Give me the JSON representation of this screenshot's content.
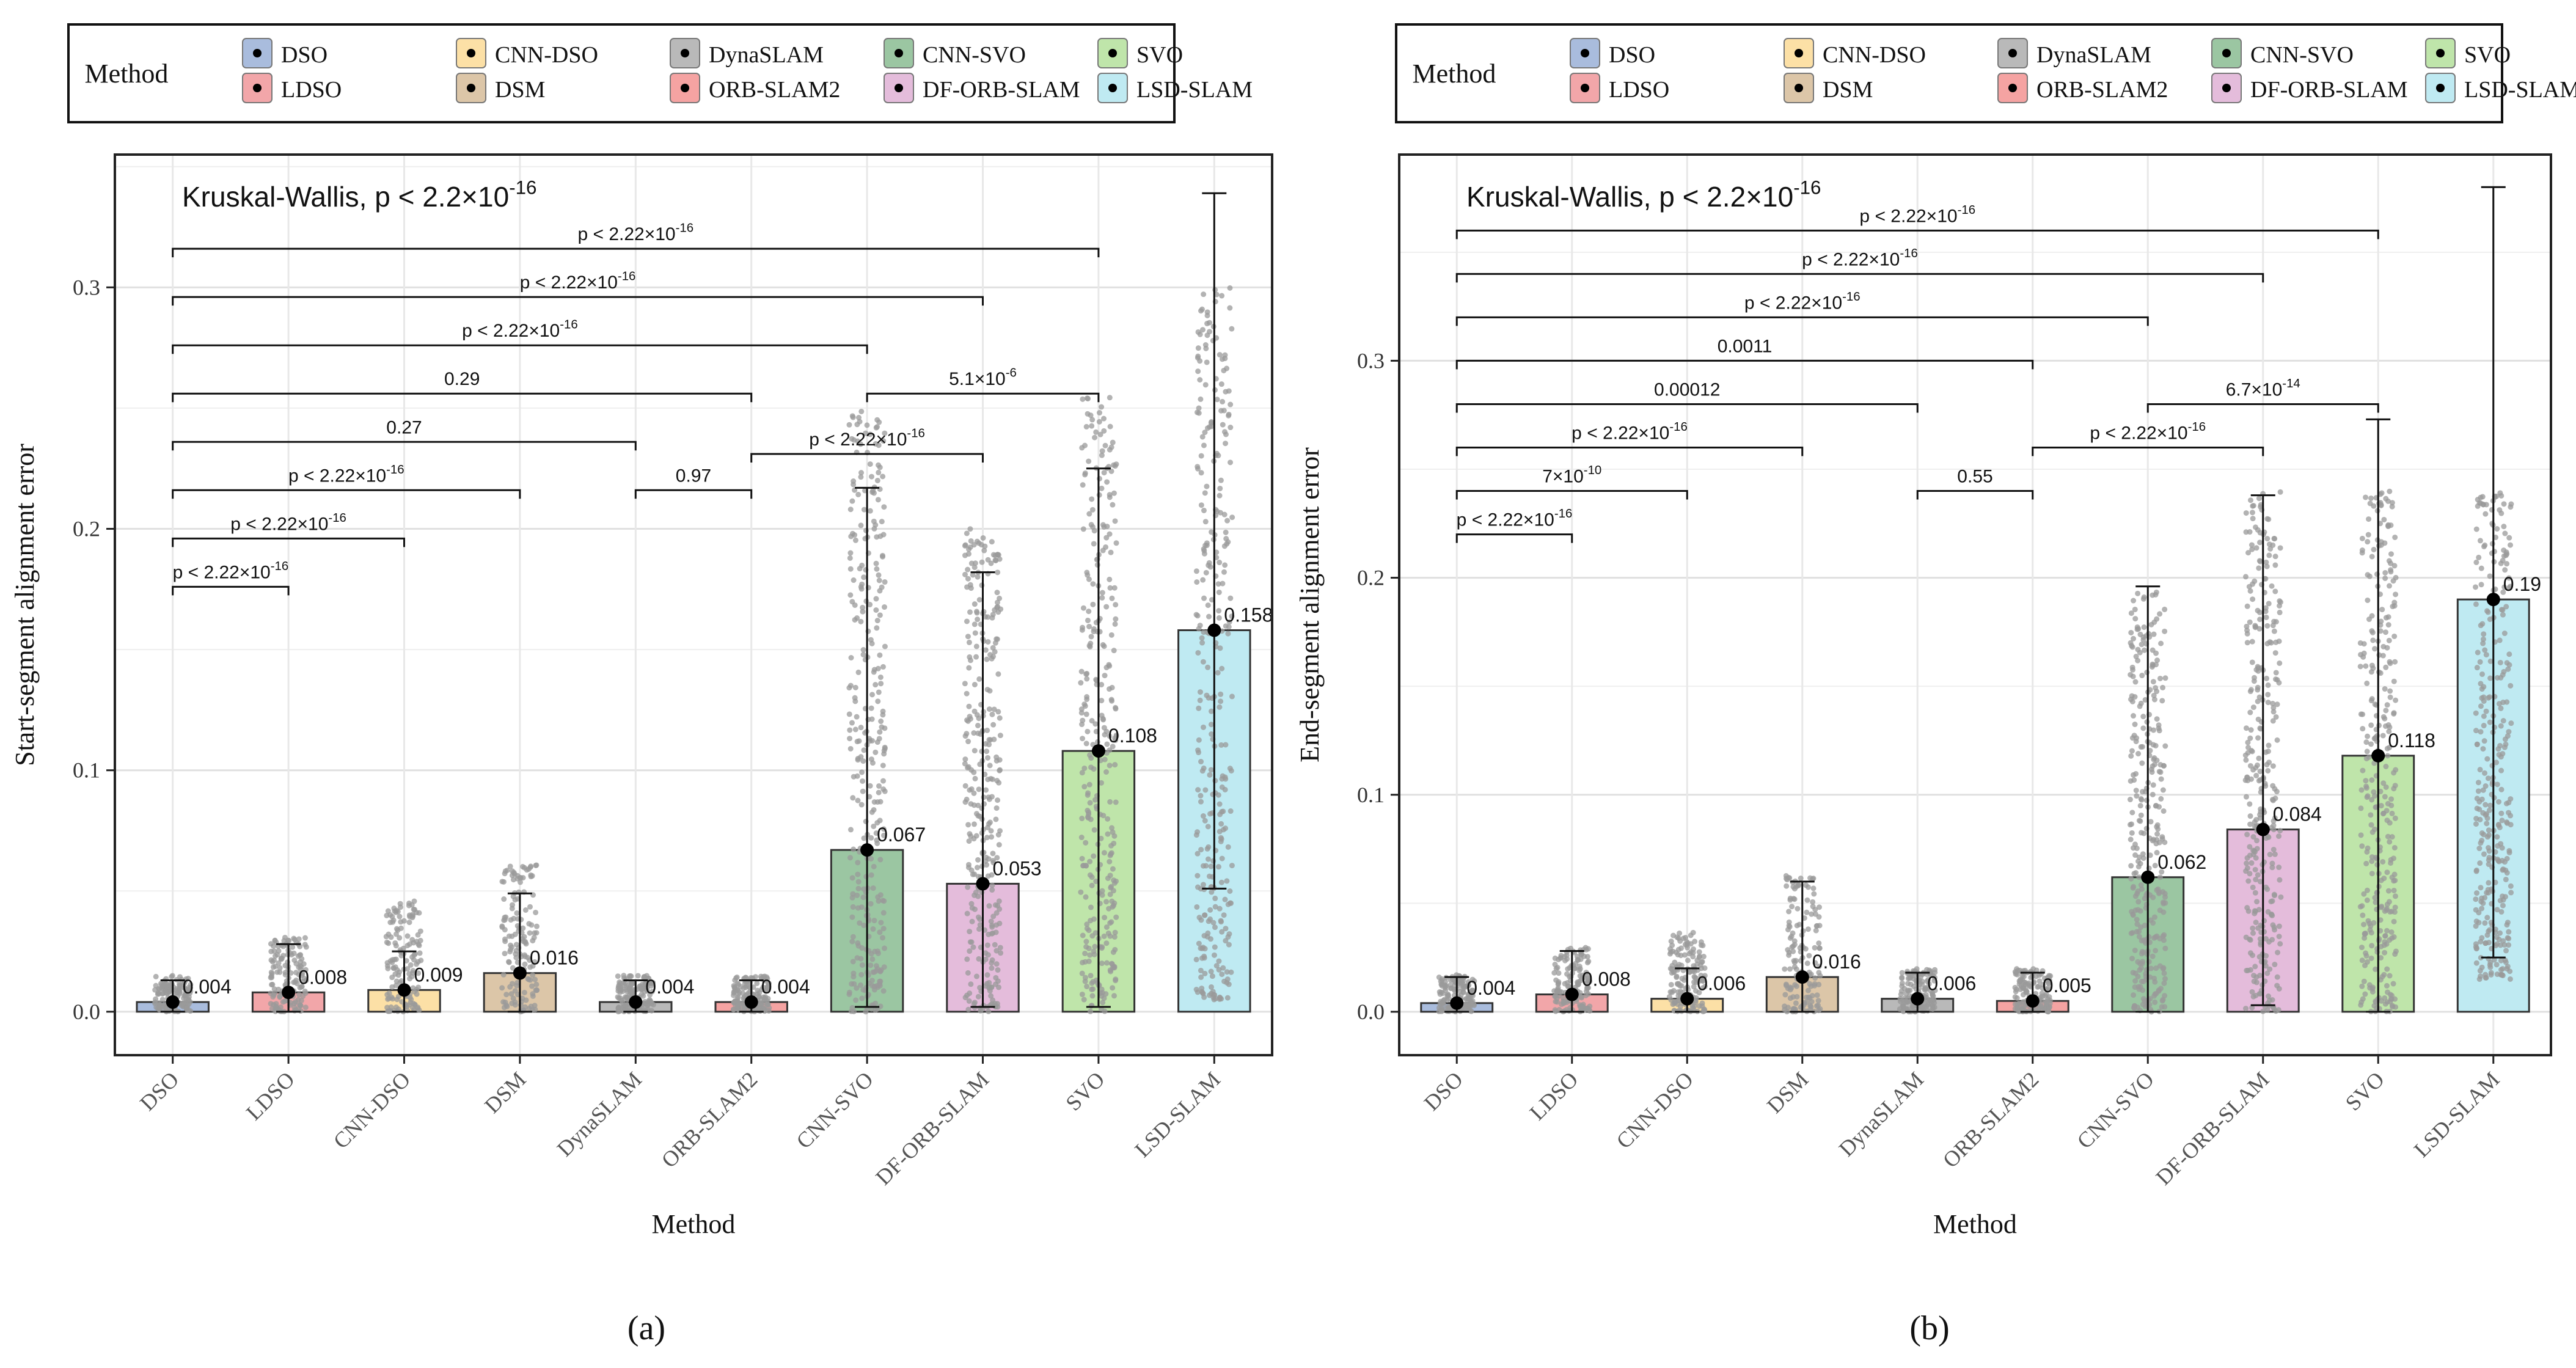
{
  "legend": {
    "title": "Method",
    "items": [
      {
        "label": "DSO",
        "color": "#A9BCDD"
      },
      {
        "label": "LDSO",
        "color": "#F2A6A9"
      },
      {
        "label": "CNN-DSO",
        "color": "#FCE0A6"
      },
      {
        "label": "DSM",
        "color": "#DCC6A8"
      },
      {
        "label": "DynaSLAM",
        "color": "#B9B9B9"
      },
      {
        "label": "ORB-SLAM2",
        "color": "#F5A3A2"
      },
      {
        "label": "CNN-SVO",
        "color": "#9BC6A2"
      },
      {
        "label": "DF-ORB-SLAM",
        "color": "#E4BCDB"
      },
      {
        "label": "SVO",
        "color": "#BFE5AA"
      },
      {
        "label": "LSD-SLAM",
        "color": "#BFEAF2"
      }
    ]
  },
  "chart_data": [
    {
      "type": "bar",
      "panel_label": "(a)",
      "categories": [
        "DSO",
        "LDSO",
        "CNN-DSO",
        "DSM",
        "DynaSLAM",
        "ORB-SLAM2",
        "CNN-SVO",
        "DF-ORB-SLAM",
        "SVO",
        "LSD-SLAM"
      ],
      "values": [
        0.004,
        0.008,
        0.009,
        0.016,
        0.004,
        0.004,
        0.067,
        0.053,
        0.108,
        0.158
      ],
      "value_labels": [
        "0.004",
        "0.008",
        "0.009",
        "0.016",
        "0.004",
        "0.004",
        "0.067",
        "0.053",
        "0.108",
        "0.158"
      ],
      "error_upper": [
        0.013,
        0.028,
        0.025,
        0.049,
        0.013,
        0.013,
        0.217,
        0.182,
        0.225,
        0.339
      ],
      "error_lower": [
        0.0,
        0.0,
        0.0,
        0.0,
        0.0,
        0.0,
        0.002,
        0.002,
        0.002,
        0.051
      ],
      "points_range": [
        [
          0.0,
          0.015
        ],
        [
          0.0,
          0.031
        ],
        [
          0.0,
          0.046
        ],
        [
          0.0,
          0.063
        ],
        [
          0.0,
          0.015
        ],
        [
          0.0,
          0.015
        ],
        [
          0.0,
          0.25
        ],
        [
          0.0,
          0.2
        ],
        [
          0.0,
          0.255
        ],
        [
          0.005,
          0.3
        ]
      ],
      "ylabel": "Start-segment alignment error",
      "xlabel": "Method",
      "ylim": [
        -0.018,
        0.355
      ],
      "yticks": [
        0.0,
        0.1,
        0.2,
        0.3
      ],
      "ytick_labels": [
        "0.0",
        "0.1",
        "0.2",
        "0.3"
      ],
      "test_label_main": "Kruskal-Wallis, p < 2.2×10",
      "test_label_exp": "-16",
      "comparisons": [
        {
          "from": 0,
          "to": 8,
          "y": 0.316,
          "text": "p < 2.22×10",
          "exp": "-16"
        },
        {
          "from": 0,
          "to": 7,
          "y": 0.296,
          "text": "p < 2.22×10",
          "exp": "-16"
        },
        {
          "from": 0,
          "to": 6,
          "y": 0.276,
          "text": "p < 2.22×10",
          "exp": "-16"
        },
        {
          "from": 0,
          "to": 5,
          "y": 0.256,
          "text": "0.29",
          "exp": ""
        },
        {
          "from": 6,
          "to": 8,
          "y": 0.256,
          "text": "5.1×10",
          "exp": "-6"
        },
        {
          "from": 0,
          "to": 4,
          "y": 0.236,
          "text": "0.27",
          "exp": ""
        },
        {
          "from": 5,
          "to": 7,
          "y": 0.231,
          "text": "p < 2.22×10",
          "exp": "-16"
        },
        {
          "from": 0,
          "to": 3,
          "y": 0.216,
          "text": "p < 2.22×10",
          "exp": "-16"
        },
        {
          "from": 4,
          "to": 5,
          "y": 0.216,
          "text": "0.97",
          "exp": ""
        },
        {
          "from": 0,
          "to": 2,
          "y": 0.196,
          "text": "p < 2.22×10",
          "exp": "-16"
        },
        {
          "from": 0,
          "to": 1,
          "y": 0.176,
          "text": "p < 2.22×10",
          "exp": "-16"
        }
      ]
    },
    {
      "type": "bar",
      "panel_label": "(b)",
      "categories": [
        "DSO",
        "LDSO",
        "CNN-DSO",
        "DSM",
        "DynaSLAM",
        "ORB-SLAM2",
        "CNN-SVO",
        "DF-ORB-SLAM",
        "SVO",
        "LSD-SLAM"
      ],
      "values": [
        0.004,
        0.008,
        0.006,
        0.016,
        0.006,
        0.005,
        0.062,
        0.084,
        0.118,
        0.19
      ],
      "value_labels": [
        "0.004",
        "0.008",
        "0.006",
        "0.016",
        "0.006",
        "0.005",
        "0.062",
        "0.084",
        "0.118",
        "0.19"
      ],
      "error_upper": [
        0.016,
        0.028,
        0.02,
        0.06,
        0.018,
        0.018,
        0.196,
        0.238,
        0.273,
        0.38
      ],
      "error_lower": [
        0.0,
        0.0,
        0.0,
        0.0,
        0.0,
        0.0,
        0.0,
        0.003,
        0.0,
        0.025
      ],
      "points_range": [
        [
          0.0,
          0.017
        ],
        [
          0.0,
          0.03
        ],
        [
          0.0,
          0.037
        ],
        [
          0.0,
          0.063
        ],
        [
          0.0,
          0.02
        ],
        [
          0.0,
          0.02
        ],
        [
          0.0,
          0.196
        ],
        [
          0.0,
          0.24
        ],
        [
          0.0,
          0.24
        ],
        [
          0.015,
          0.24
        ]
      ],
      "ylabel": "End-segment alignment error",
      "xlabel": "Method",
      "ylim": [
        -0.02,
        0.395
      ],
      "yticks": [
        0.0,
        0.1,
        0.2,
        0.3
      ],
      "ytick_labels": [
        "0.0",
        "0.1",
        "0.2",
        "0.3"
      ],
      "test_label_main": "Kruskal-Wallis, p < 2.2×10",
      "test_label_exp": "-16",
      "comparisons": [
        {
          "from": 0,
          "to": 8,
          "y": 0.36,
          "text": "p < 2.22×10",
          "exp": "-16"
        },
        {
          "from": 0,
          "to": 7,
          "y": 0.34,
          "text": "p < 2.22×10",
          "exp": "-16"
        },
        {
          "from": 0,
          "to": 6,
          "y": 0.32,
          "text": "p < 2.22×10",
          "exp": "-16"
        },
        {
          "from": 0,
          "to": 5,
          "y": 0.3,
          "text": "0.0011",
          "exp": ""
        },
        {
          "from": 6,
          "to": 8,
          "y": 0.28,
          "text": "6.7×10",
          "exp": "-14"
        },
        {
          "from": 0,
          "to": 4,
          "y": 0.28,
          "text": "0.00012",
          "exp": ""
        },
        {
          "from": 0,
          "to": 3,
          "y": 0.26,
          "text": "p < 2.22×10",
          "exp": "-16"
        },
        {
          "from": 5,
          "to": 7,
          "y": 0.26,
          "text": "p < 2.22×10",
          "exp": "-16"
        },
        {
          "from": 0,
          "to": 2,
          "y": 0.24,
          "text": "7×10",
          "exp": "-10"
        },
        {
          "from": 4,
          "to": 5,
          "y": 0.24,
          "text": "0.55",
          "exp": ""
        },
        {
          "from": 0,
          "to": 1,
          "y": 0.22,
          "text": "p < 2.22×10",
          "exp": "-16"
        }
      ]
    }
  ]
}
